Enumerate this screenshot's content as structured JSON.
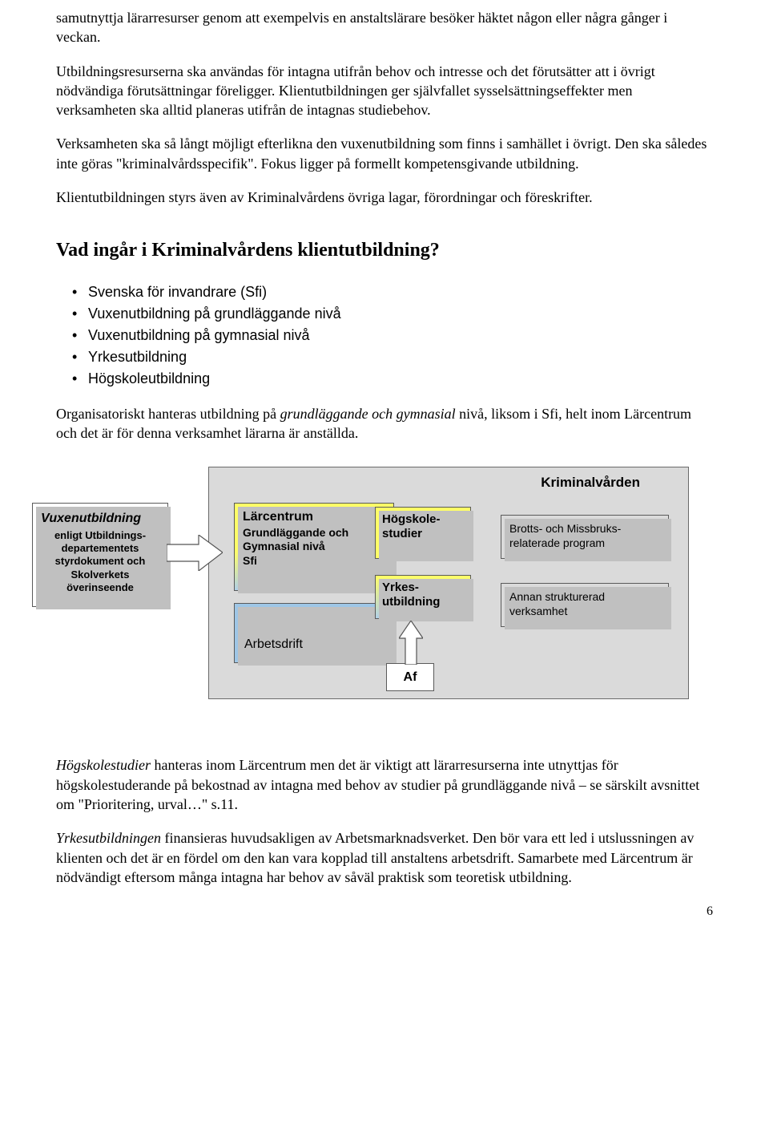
{
  "paragraphs": {
    "p1": "samutnyttja lärarresurser genom att exempelvis en anstaltslärare besöker häktet någon eller några gånger i veckan.",
    "p2": "Utbildningsresurserna ska användas för intagna utifrån behov och intresse och det förutsätter att i övrigt nödvändiga förutsättningar föreligger. Klientutbildningen ger självfallet sysselsättningseffekter men verksamheten ska alltid planeras utifrån de intagnas studiebehov.",
    "p3": "Verksamheten ska så långt möjligt efterlikna den vuxenutbildning som finns i samhället i övrigt. Den ska således inte göras \"kriminalvårdsspecifik\". Fokus ligger på formellt kompetensgivande utbildning.",
    "p4": "Klientutbildningen styrs även av Kriminalvårdens övriga lagar, förordningar och föreskrifter.",
    "p5_a": "Organisatoriskt hanteras utbildning på ",
    "p5_i": "grundläggande och gymnasial",
    "p5_b": " nivå, liksom i Sfi, helt inom Lärcentrum och det är för denna verksamhet lärarna är anställda.",
    "p6_i": "Högskolestudier",
    "p6_a": " hanteras inom Lärcentrum men det är viktigt att lärarresurserna inte utnyttjas för högskolestuderande på bekostnad av intagna med behov av studier på grundläggande nivå – se särskilt avsnittet om \"Prioritering, urval…\" s.11.",
    "p7_i": "Yrkesutbildningen",
    "p7_a": " finansieras huvudsakligen av Arbetsmarknadsverket. Den bör vara ett led i utslussningen av klienten och det är en fördel om den kan vara kopplad till anstaltens arbetsdrift. Samarbete med Lärcentrum är nödvändigt eftersom många intagna har behov av såväl praktisk som teoretisk utbildning."
  },
  "heading": "Vad ingår i Kriminalvårdens klientutbildning?",
  "bullets": [
    "Svenska för invandrare (Sfi)",
    "Vuxenutbildning på grundläggande nivå",
    "Vuxenutbildning på gymnasial nivå",
    "Yrkesutbildning",
    "Högskoleutbildning"
  ],
  "diagram": {
    "outer_bg": "#dadada",
    "kv_title": "Kriminalvården",
    "vuxen_title": "Vuxenutbildning",
    "vuxen_sub": "enligt Utbildnings-\ndepartementets\nstyrdokument och\nSkolverkets\növerinseende",
    "larcentrum_title": "Lärcentrum",
    "larcentrum_sub": "Grundläggande och\nGymnasial nivå\nSfi",
    "larcentrum_gradient_top": "#ffff66",
    "larcentrum_gradient_bottom": "#b0d0e8",
    "arbets": "Arbetsdrift",
    "arbets_bg": "#9ec6e6",
    "hogskole": "Högskole-\nstudier",
    "hogskole_bg": "#ffff66",
    "yrkes": "Yrkes-\nutbildning",
    "yrkes_gradient_top": "#ffff66",
    "yrkes_gradient_bottom": "#b0d0e8",
    "brotts": "Brotts- och Missbruks-\nrelaterade program",
    "annan": "Annan strukturerad\nverksamhet",
    "af": "Af"
  },
  "page_number": "6"
}
